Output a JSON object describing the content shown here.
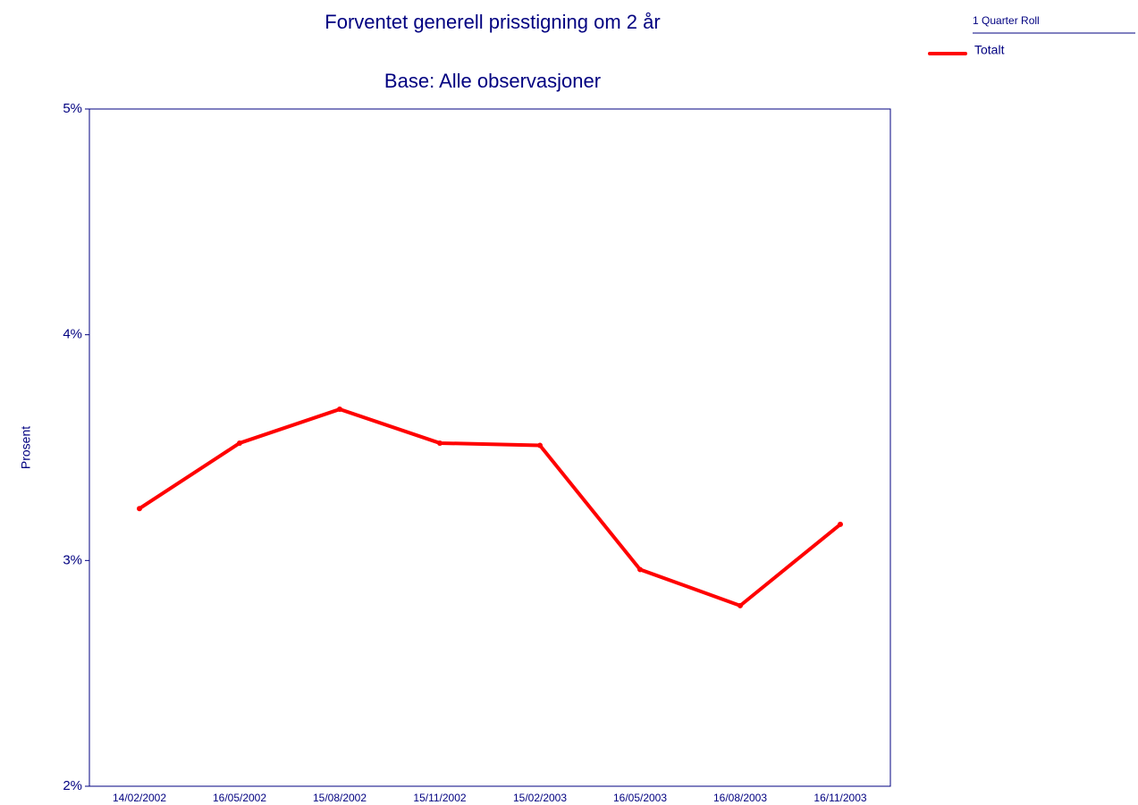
{
  "chart_data": {
    "type": "line",
    "title": "Forventet generell prisstigning om 2 år",
    "subtitle": "Base: Alle observasjoner",
    "y_label": "Prosent",
    "legend_title": "1 Quarter Roll",
    "categories": [
      "14/02/2002",
      "16/05/2002",
      "15/08/2002",
      "15/11/2002",
      "15/02/2003",
      "16/05/2003",
      "16/08/2003",
      "16/11/2003"
    ],
    "series": [
      {
        "name": "Totalt",
        "color": "#ff0000",
        "values": [
          3.23,
          3.52,
          3.67,
          3.52,
          3.51,
          2.96,
          2.8,
          3.16
        ]
      }
    ],
    "ylim": [
      2,
      5
    ],
    "yticks": [
      {
        "value": 2,
        "label": "2%"
      },
      {
        "value": 3,
        "label": "3%"
      },
      {
        "value": 4,
        "label": "4%"
      },
      {
        "value": 5,
        "label": "5%"
      }
    ],
    "legend_position": "top-right"
  }
}
